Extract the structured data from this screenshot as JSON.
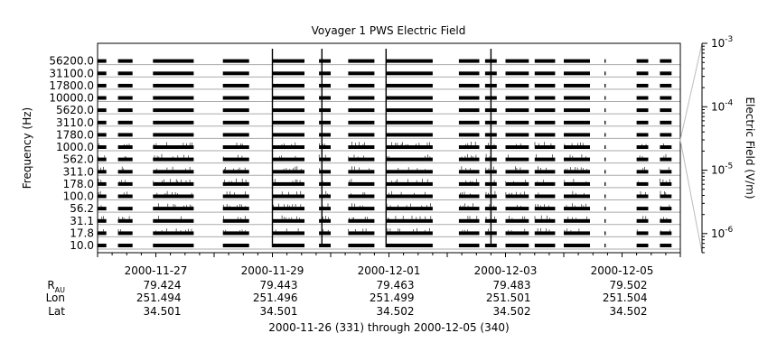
{
  "chart_data": {
    "type": "heatmap",
    "title": "Voyager 1 PWS Electric Field",
    "ylabel": "Frequency (Hz)",
    "colorbar_label": "Electric Field (V/m)",
    "colorbar_scale": "log",
    "colorbar_range": [
      5e-07,
      0.001
    ],
    "colorbar_ticks": [
      {
        "value": 0.001,
        "mantissa": "10",
        "exp": "-3"
      },
      {
        "value": 0.0001,
        "mantissa": "10",
        "exp": "-4"
      },
      {
        "value": 1e-05,
        "mantissa": "10",
        "exp": "-5"
      },
      {
        "value": 1e-06,
        "mantissa": "10",
        "exp": "-6"
      }
    ],
    "y_channels": [
      "10.0",
      "17.8",
      "31.1",
      "56.2",
      "100.0",
      "178.0",
      "311.0",
      "562.0",
      "1000.0",
      "1780.0",
      "3110.0",
      "5620.0",
      "10000.0",
      "17800.0",
      "31100.0",
      "56200.0"
    ],
    "x_range": [
      "2000-11-26",
      "2000-12-06"
    ],
    "x_tick_labels": [
      "2000-11-27",
      "2000-11-29",
      "2000-12-01",
      "2000-12-03",
      "2000-12-05"
    ],
    "data_intervals_day_of_year": [
      [
        331.0,
        331.15
      ],
      [
        331.35,
        331.6
      ],
      [
        331.95,
        332.65
      ],
      [
        333.15,
        333.6
      ],
      [
        334.0,
        334.55
      ],
      [
        334.8,
        335.0
      ],
      [
        335.3,
        335.75
      ],
      [
        335.95,
        336.75
      ],
      [
        337.2,
        337.55
      ],
      [
        337.65,
        337.85
      ],
      [
        338.0,
        338.4
      ],
      [
        338.5,
        338.85
      ],
      [
        339.0,
        339.45
      ],
      [
        339.7,
        339.72
      ],
      [
        340.25,
        340.45
      ],
      [
        340.65,
        340.85
      ]
    ],
    "bursts_day_of_year": [
      334.0,
      334.85,
      335.95,
      337.75
    ]
  },
  "ephemeris": {
    "rows": [
      {
        "label": "R",
        "label_sub": "AU",
        "values": [
          "79.424",
          "79.443",
          "79.463",
          "79.483",
          "79.502"
        ]
      },
      {
        "label": "Lon",
        "values": [
          "251.494",
          "251.496",
          "251.499",
          "251.501",
          "251.504"
        ]
      },
      {
        "label": "Lat",
        "values": [
          "34.501",
          "34.501",
          "34.502",
          "34.502",
          "34.502"
        ]
      }
    ],
    "range_text": "2000-11-26 (331) through 2000-12-05 (340)"
  }
}
